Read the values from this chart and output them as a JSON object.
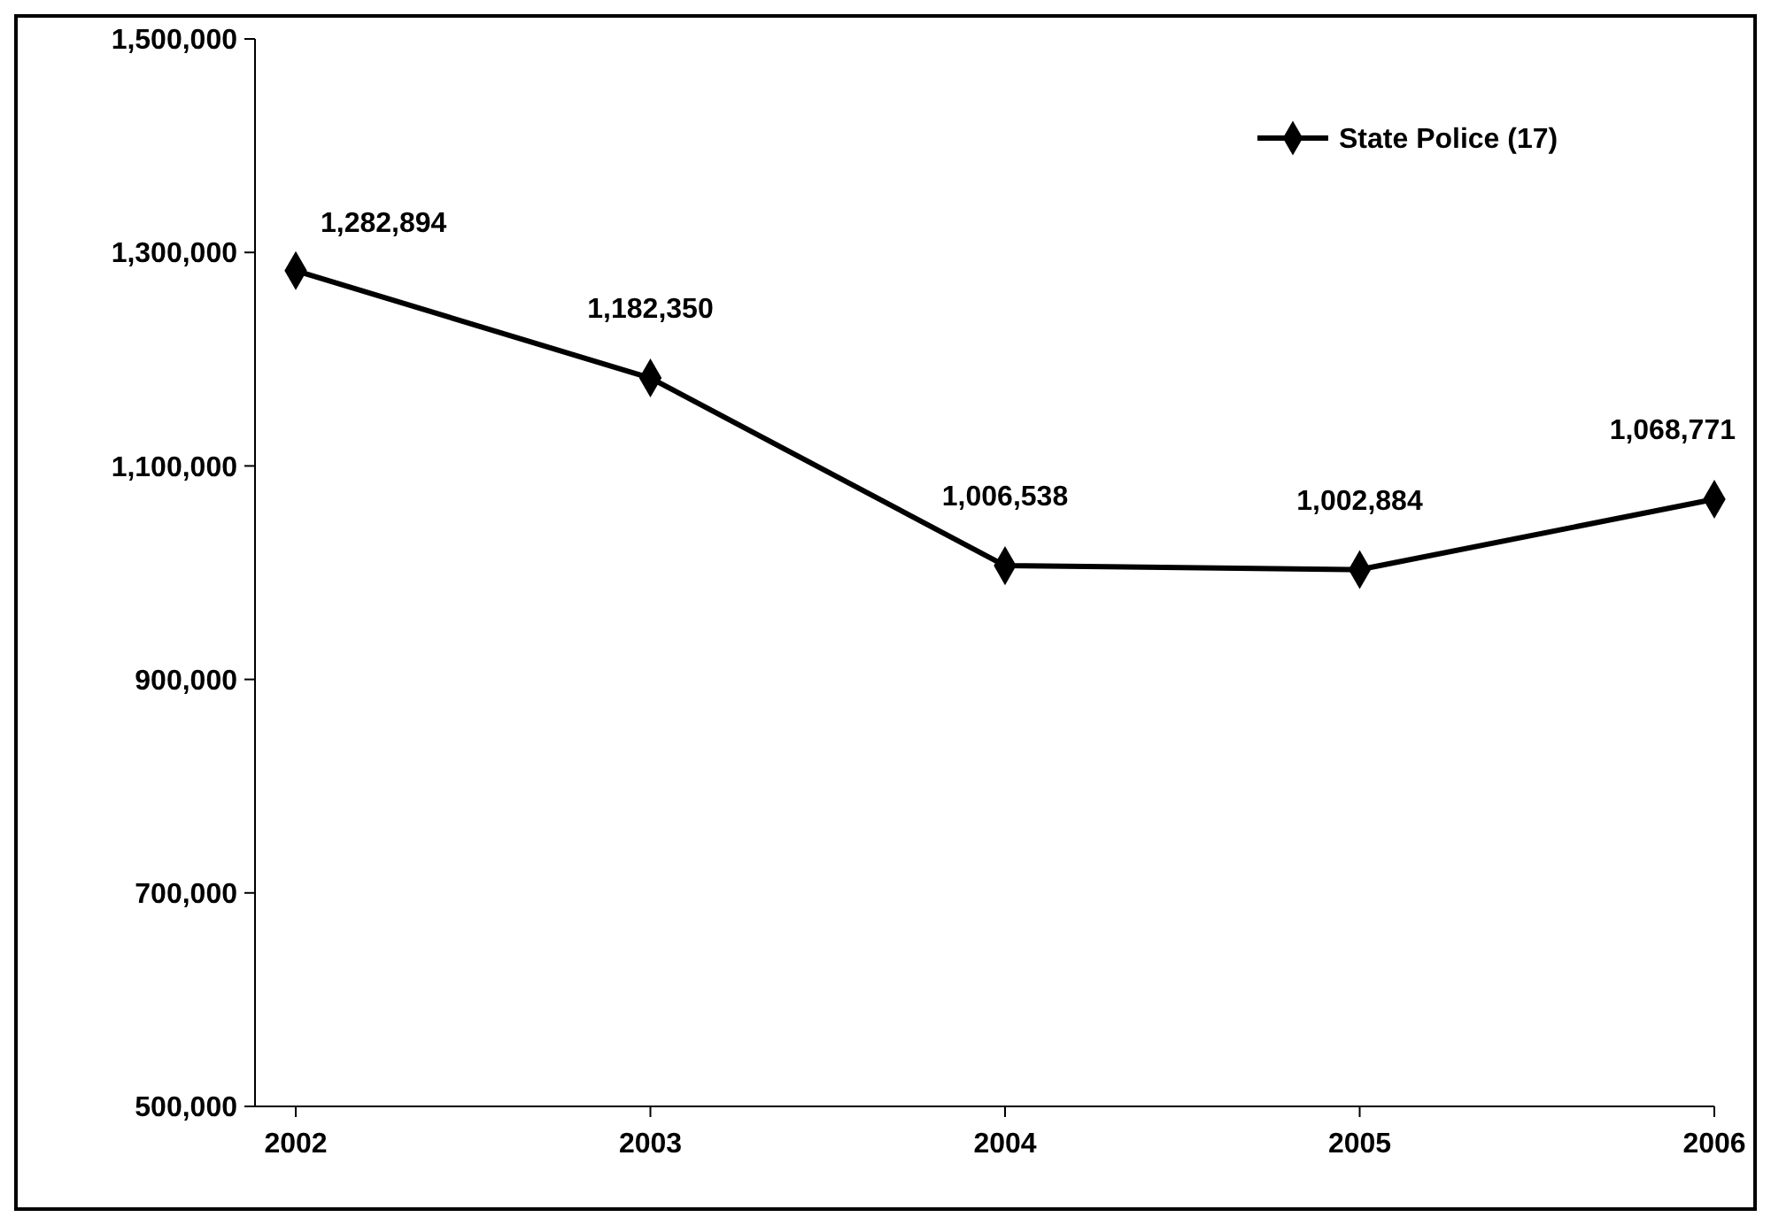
{
  "chart_data": {
    "type": "line",
    "categories": [
      "2002",
      "2003",
      "2004",
      "2005",
      "2006"
    ],
    "series": [
      {
        "name": "State Police (17)",
        "color": "#000000",
        "values": [
          1282894,
          1182350,
          1006538,
          1002884,
          1068771
        ],
        "value_labels": [
          "1,282,894",
          "1,182,350",
          "1,006,538",
          "1,002,884",
          "1,068,771"
        ]
      }
    ],
    "ylim": [
      500000,
      1500000
    ],
    "yticks": [
      {
        "value": 500000,
        "label": "500,000"
      },
      {
        "value": 700000,
        "label": "700,000"
      },
      {
        "value": 900000,
        "label": "900,000"
      },
      {
        "value": 1100000,
        "label": "1,100,000"
      },
      {
        "value": 1300000,
        "label": "1,300,000"
      },
      {
        "value": 1500000,
        "label": "1,500,000"
      }
    ],
    "marker": "diamond",
    "legend": "top right",
    "grid": false
  }
}
